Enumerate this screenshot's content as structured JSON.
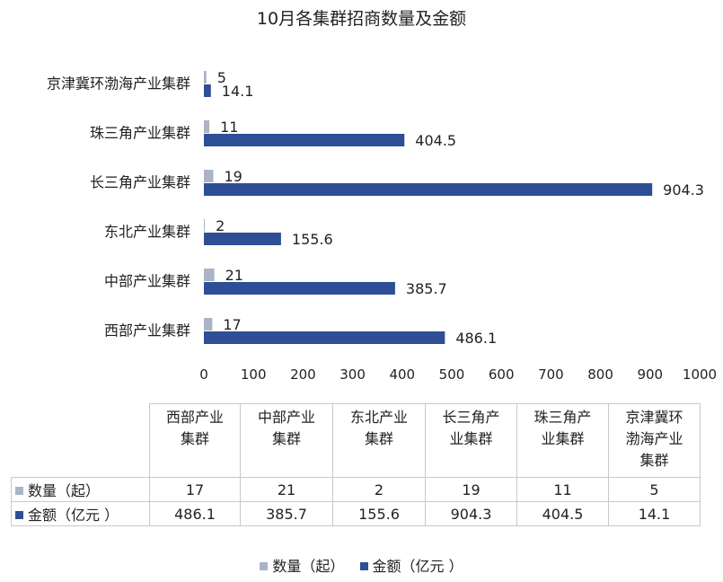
{
  "chart_data": {
    "type": "bar",
    "orientation": "horizontal",
    "title": "10月各集群招商数量及金额",
    "categories": [
      "京津冀环渤海产业集群",
      "珠三角产业集群",
      "长三角产业集群",
      "东北产业集群",
      "中部产业集群",
      "西部产业集群"
    ],
    "series": [
      {
        "name": "数量（起）",
        "color": "#aab4c6",
        "values": [
          5,
          11,
          19,
          2,
          21,
          17
        ]
      },
      {
        "name": "金额（亿元 ）",
        "color": "#2e4f95",
        "values": [
          14.1,
          404.5,
          904.3,
          155.6,
          385.7,
          486.1
        ]
      }
    ],
    "xlim": [
      0,
      1000
    ],
    "xticks": [
      0,
      100,
      200,
      300,
      400,
      500,
      600,
      700,
      800,
      900,
      1000
    ],
    "grid": false,
    "legend_position": "bottom"
  },
  "table": {
    "columns": [
      "西部产业\n集群",
      "中部产业\n集群",
      "东北产业\n集群",
      "长三角产\n业集群",
      "珠三角产\n业集群",
      "京津冀环\n渤海产业\n集群"
    ],
    "rows": [
      {
        "label": "数量（起）",
        "color": "#aab4c6",
        "values": [
          "17",
          "21",
          "2",
          "19",
          "11",
          "5"
        ]
      },
      {
        "label": "金额（亿元 ）",
        "color": "#2e4f95",
        "values": [
          "486.1",
          "385.7",
          "155.6",
          "904.3",
          "404.5",
          "14.1"
        ]
      }
    ]
  }
}
